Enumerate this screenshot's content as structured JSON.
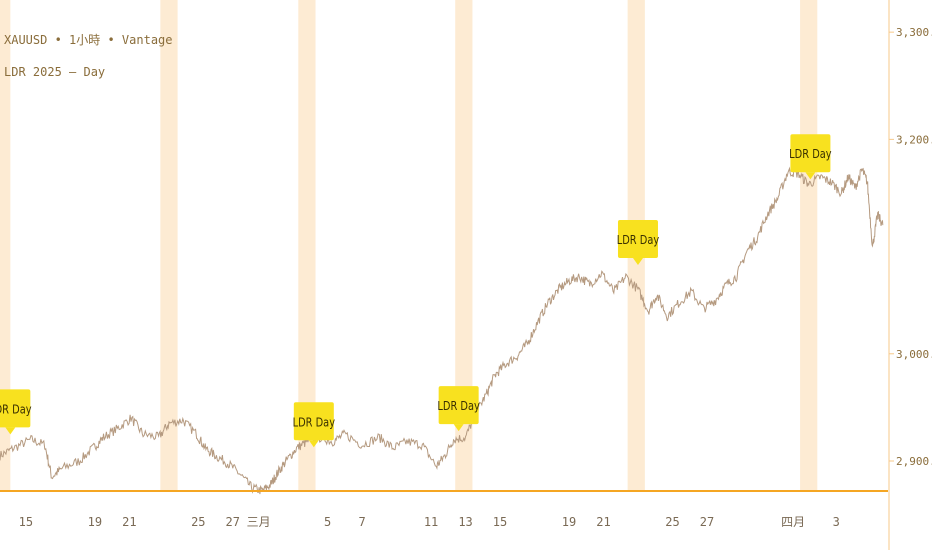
{
  "legend": {
    "line1": "XAUUSD • 1小時 • Vantage",
    "line2": "LDR 2025 — Day"
  },
  "colors": {
    "price_line": "#b59a80",
    "band": "#fdebd3",
    "marker_fill": "#f8e11f",
    "marker_text": "#3a3000",
    "axis_line": "#f5a623",
    "axis_text": "#8a6d3b"
  },
  "chart_data": {
    "type": "line",
    "title": "",
    "ylim": [
      2872,
      3330
    ],
    "y_ticks": [
      2900,
      3000,
      3200,
      3300
    ],
    "y_tick_labels": [
      "2,900.00",
      "3,000.00",
      "3,200.00",
      "3,300.00"
    ],
    "x_ticks": [
      {
        "label": "15",
        "x": 1.5
      },
      {
        "label": "19",
        "x": 5.5
      },
      {
        "label": "21",
        "x": 7.5
      },
      {
        "label": "25",
        "x": 11.5
      },
      {
        "label": "27",
        "x": 13.5
      },
      {
        "label": "三月",
        "x": 15
      },
      {
        "label": "5",
        "x": 19
      },
      {
        "label": "7",
        "x": 21
      },
      {
        "label": "11",
        "x": 25
      },
      {
        "label": "13",
        "x": 27
      },
      {
        "label": "15",
        "x": 29
      },
      {
        "label": "19",
        "x": 33
      },
      {
        "label": "21",
        "x": 35
      },
      {
        "label": "25",
        "x": 39
      },
      {
        "label": "27",
        "x": 41
      },
      {
        "label": "四月",
        "x": 46
      },
      {
        "label": "3",
        "x": 48.5
      }
    ],
    "x_range": [
      0,
      51.5
    ],
    "bands": [
      [
        0,
        0.6
      ],
      [
        9.3,
        10.3
      ],
      [
        17.3,
        18.3
      ],
      [
        26.4,
        27.4
      ],
      [
        36.4,
        37.4
      ],
      [
        46.4,
        47.4
      ]
    ],
    "markers": [
      {
        "label": "LDR Day",
        "x": 0.6,
        "y": 2922
      },
      {
        "label": "LDR Day",
        "x": 18.2,
        "y": 2910
      },
      {
        "label": "LDR Day",
        "x": 26.6,
        "y": 2925
      },
      {
        "label": "LDR Day",
        "x": 37.0,
        "y": 3080
      },
      {
        "label": "LDR Day",
        "x": 47.0,
        "y": 3160
      }
    ],
    "series": [
      {
        "x": [
          0,
          0.8,
          1.8,
          2.6,
          3.0,
          3.6,
          4.6,
          5.4,
          6.0,
          6.8,
          7.6,
          8.3,
          9.2,
          9.8,
          10.6,
          11.4,
          11.9,
          12.5,
          13.2,
          13.9,
          14.6,
          15.2,
          15.7,
          16.1,
          16.6,
          17.2,
          17.8,
          18.6,
          19.3,
          20.0,
          21.0,
          22.0,
          22.8,
          23.6,
          24.5,
          25.3,
          25.8,
          26.3,
          27.0,
          27.6,
          28.2,
          28.7,
          29.3,
          30.0,
          30.6,
          31.2,
          31.8,
          32.4,
          33.0,
          33.6,
          34.2,
          34.9,
          35.6,
          36.3,
          37.0,
          37.6,
          38.1,
          38.7,
          39.4,
          40.1,
          40.8,
          41.5,
          42.1,
          42.7,
          43.3,
          43.9,
          44.5,
          45.1,
          45.7,
          46.3,
          46.9,
          47.6,
          48.2,
          48.8,
          49.2,
          49.6,
          50.0,
          50.3,
          50.6,
          50.9,
          51.2
        ],
        "y": [
          2905,
          2912,
          2920,
          2915,
          2885,
          2893,
          2900,
          2912,
          2922,
          2930,
          2940,
          2925,
          2922,
          2935,
          2938,
          2925,
          2912,
          2905,
          2898,
          2888,
          2875,
          2872,
          2878,
          2889,
          2900,
          2912,
          2918,
          2922,
          2918,
          2925,
          2915,
          2922,
          2912,
          2918,
          2915,
          2895,
          2905,
          2920,
          2922,
          2945,
          2962,
          2980,
          2990,
          2998,
          3010,
          3030,
          3048,
          3060,
          3068,
          3072,
          3065,
          3075,
          3058,
          3072,
          3060,
          3040,
          3055,
          3035,
          3048,
          3058,
          3042,
          3050,
          3064,
          3072,
          3095,
          3108,
          3130,
          3145,
          3170,
          3168,
          3158,
          3165,
          3160,
          3150,
          3165,
          3155,
          3172,
          3160,
          3100,
          3130,
          3120
        ]
      }
    ]
  }
}
